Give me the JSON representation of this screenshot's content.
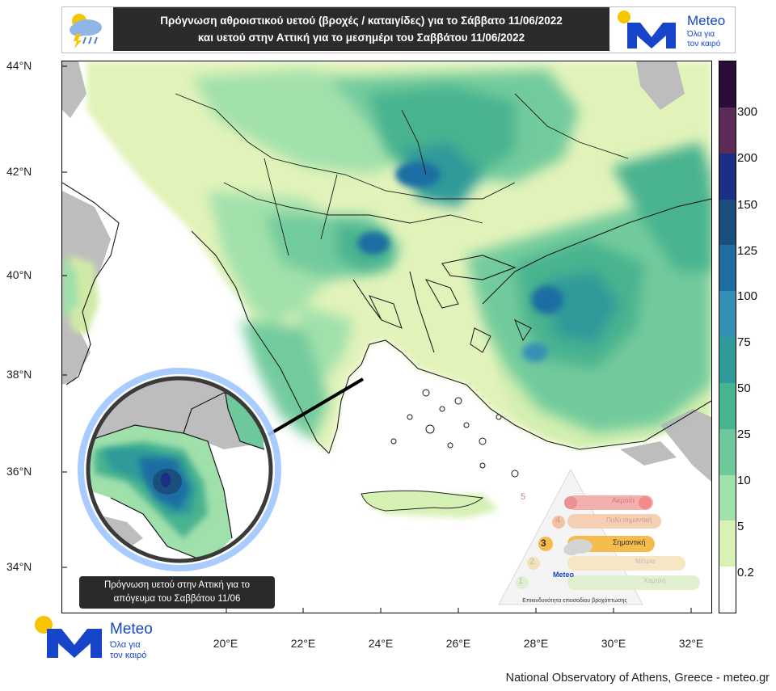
{
  "header": {
    "title_line1": "Πρόγνωση αθροιστικού υετού (βροχές / καταιγίδες) για το Σάββατο 11/06/2022",
    "title_line2": "και υετού στην Αττική για το μεσημέρι του Σαββάτου 11/06/2022",
    "weather_icon": "rain-thunder-cloud-icon",
    "brand_name": "Meteo",
    "brand_tagline_1": "Όλα για",
    "brand_tagline_2": "τον καιρό"
  },
  "axes": {
    "lat_ticks": [
      "44°N",
      "42°N",
      "40°N",
      "38°N",
      "36°N",
      "34°N"
    ],
    "lon_ticks": [
      "20°E",
      "22°E",
      "24°E",
      "26°E",
      "28°E",
      "30°E",
      "32°E"
    ]
  },
  "legend": {
    "labels": [
      "300",
      "200",
      "150",
      "125",
      "100",
      "75",
      "50",
      "25",
      "10",
      "5",
      "0.2"
    ],
    "colors": [
      "#2a0b3a",
      "#5c2b57",
      "#1a2f86",
      "#1a4f7d",
      "#1f6da3",
      "#3490b5",
      "#2f9a9a",
      "#48b38f",
      "#6dc99b",
      "#9fe0ab",
      "#d8f2b6",
      "#ffffff"
    ]
  },
  "inset": {
    "caption_line1": "Πρόγνωση  υετού στην Αττική για το",
    "caption_line2": "απόγευμα του Σαββάτου 11/06"
  },
  "severity_pyramid": {
    "levels": [
      "1",
      "2",
      "3",
      "4",
      "5"
    ],
    "labels": [
      "Χαμηλή",
      "Μέτρια",
      "Σημαντική",
      "Πολύ σημαντική",
      "Ακραία"
    ],
    "active_level": "3",
    "colors": [
      "#d9ecc3",
      "#f5e0b3",
      "#f4a91c",
      "#f1c2a0",
      "#ef9a9a"
    ],
    "caption": "Επικινδυνότητα επεισοδίου βροχόπτωσης",
    "brand_name": "Meteo"
  },
  "bottom_logo": {
    "brand_name": "Meteo",
    "tagline_1": "Όλα για",
    "tagline_2": "τον καιρό"
  },
  "footer": {
    "credit": "National Observatory of Athens, Greece - meteo.gr"
  },
  "colors": {
    "brand_blue": "#1745c9",
    "brand_yellow": "#f7c400",
    "sea": "#ffffff",
    "no_data_land": "#bdbdbd"
  }
}
